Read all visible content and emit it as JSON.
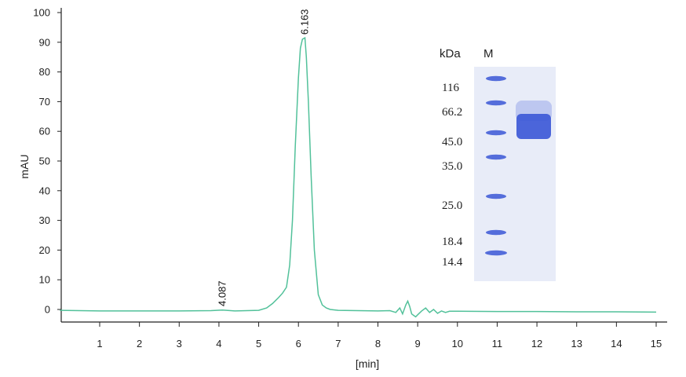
{
  "chart_data": {
    "type": "line",
    "xlabel": "[min]",
    "ylabel": "mAU",
    "xlim": [
      0,
      15.3
    ],
    "ylim": [
      -3,
      100
    ],
    "xticks": [
      1,
      2,
      3,
      4,
      5,
      6,
      7,
      8,
      9,
      10,
      11,
      12,
      13,
      14,
      15
    ],
    "yticks": [
      0,
      10,
      20,
      30,
      40,
      50,
      60,
      70,
      80,
      90,
      100
    ],
    "grid": false,
    "series": [
      {
        "color": "#52c19a",
        "x": [
          0,
          1,
          2,
          3,
          3.8,
          4.087,
          4.4,
          5.0,
          5.2,
          5.35,
          5.5,
          5.6,
          5.7,
          5.78,
          5.85,
          5.92,
          6.0,
          6.05,
          6.1,
          6.163,
          6.2,
          6.25,
          6.32,
          6.4,
          6.5,
          6.6,
          6.7,
          6.8,
          7.0,
          7.5,
          8.0,
          8.3,
          8.45,
          8.55,
          8.62,
          8.7,
          8.75,
          8.8,
          8.85,
          8.9,
          8.95,
          9.0,
          9.1,
          9.2,
          9.3,
          9.4,
          9.5,
          9.6,
          9.7,
          9.8,
          10.0,
          11.0,
          12.0,
          13.0,
          14.0,
          15.0
        ],
        "y": [
          -0.3,
          -0.5,
          -0.5,
          -0.5,
          -0.4,
          -0.2,
          -0.5,
          -0.3,
          0.5,
          2.0,
          4.0,
          5.5,
          7.5,
          15.0,
          30.0,
          55.0,
          78.0,
          88.0,
          91.0,
          91.5,
          85.0,
          70.0,
          45.0,
          20.0,
          5.0,
          1.5,
          0.5,
          0.0,
          -0.3,
          -0.4,
          -0.5,
          -0.4,
          -1.0,
          0.5,
          -1.5,
          1.5,
          2.8,
          1.0,
          -1.5,
          -2.0,
          -2.5,
          -1.8,
          -0.5,
          0.5,
          -1.0,
          0.0,
          -1.3,
          -0.5,
          -1.0,
          -0.6,
          -0.6,
          -0.7,
          -0.7,
          -0.8,
          -0.8,
          -0.9
        ]
      }
    ],
    "peak_labels": [
      {
        "text": "4.087",
        "x": 4.087,
        "y": 0
      },
      {
        "text": "6.163",
        "x": 6.163,
        "y": 91.5
      }
    ]
  },
  "gel": {
    "unit_label": "kDa",
    "lane_label": "M",
    "markers": [
      "116",
      "66.2",
      "45.0",
      "35.0",
      "25.0",
      "18.4",
      "14.4"
    ],
    "colors": {
      "background": "#e8ecf8",
      "band": "#3a57d6",
      "line": "#52c19a"
    }
  }
}
